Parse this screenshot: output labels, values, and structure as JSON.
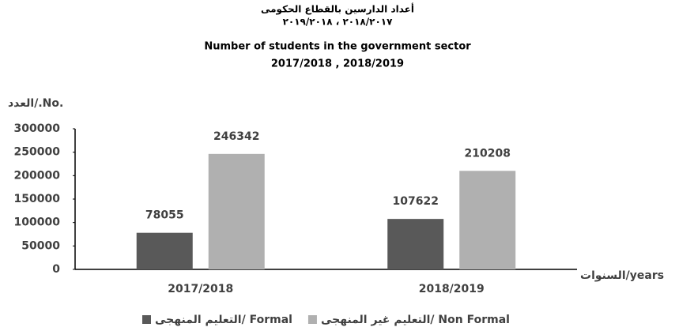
{
  "chart_data": {
    "type": "bar",
    "title": "أعداد الدارسين بالقطاع الحكومى",
    "subtitle": "٢٠١٩/٢٠١٨ ، ٢٠١٨/٢٠١٧",
    "title_en": "Number of students in the government sector",
    "subtitle_en": "2017/2018 , 2018/2019",
    "y_label": "العدد/.No.",
    "x_label": "السنوات/years",
    "categories": [
      "2017/2018",
      "2018/2019"
    ],
    "series": [
      {
        "name": "التعليم المنهجى/ Formal",
        "color": "#595959",
        "values": [
          78055,
          107622
        ]
      },
      {
        "name": "التعليم غير المنهجى/ Non Formal",
        "color": "#b0b0b0",
        "values": [
          246342,
          210208
        ]
      }
    ],
    "ylim": [
      0,
      300000
    ],
    "yticks": [
      0,
      50000,
      100000,
      150000,
      200000,
      250000,
      300000
    ],
    "legend": "bottom"
  }
}
